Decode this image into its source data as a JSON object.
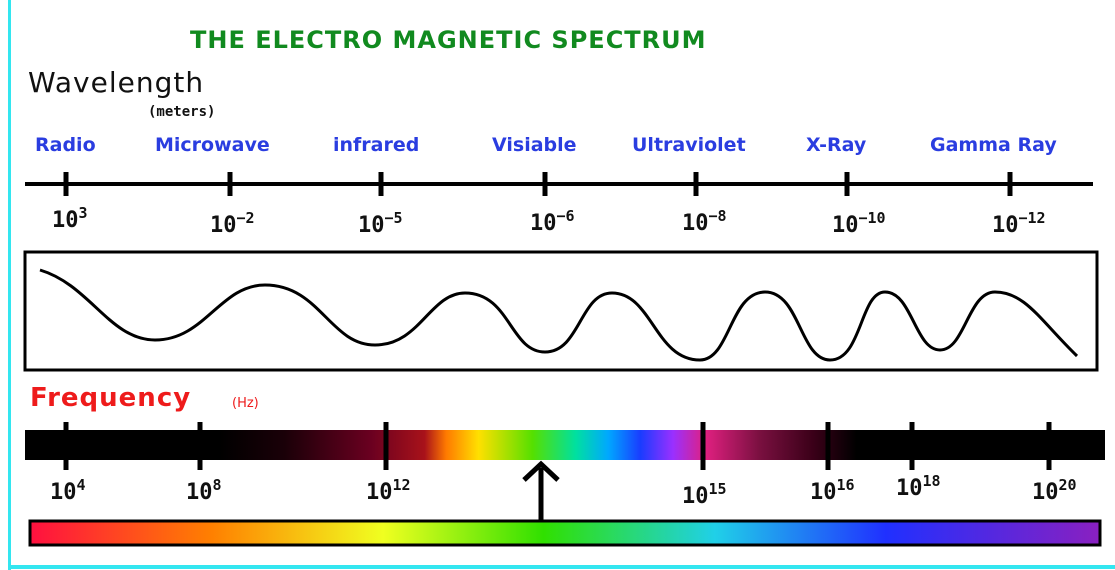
{
  "title": "THE ELECTRO MAGNETIC SPECTRUM",
  "wavelength": {
    "label": "Wavelength",
    "unit": "(meters)",
    "bands": [
      "Radio",
      "Microwave",
      "infrared",
      "Visiable",
      "Ultraviolet",
      "X-Ray",
      "Gamma Ray"
    ],
    "exponents": [
      {
        "base": "10",
        "exp": "3"
      },
      {
        "base": "10",
        "exp": "−2"
      },
      {
        "base": "10",
        "exp": "−5"
      },
      {
        "base": "10",
        "exp": "−6"
      },
      {
        "base": "10",
        "exp": "−8"
      },
      {
        "base": "10",
        "exp": "−10"
      },
      {
        "base": "10",
        "exp": "−12"
      }
    ]
  },
  "frequency": {
    "label": "Frequency",
    "unit": "(Hz)",
    "exponents": [
      {
        "base": "10",
        "exp": "4"
      },
      {
        "base": "10",
        "exp": "8"
      },
      {
        "base": "10",
        "exp": "12"
      },
      {
        "base": "10",
        "exp": "15"
      },
      {
        "base": "10",
        "exp": "16"
      },
      {
        "base": "10",
        "exp": "18"
      },
      {
        "base": "10",
        "exp": "20"
      }
    ]
  },
  "colors": {
    "title": "#118a1f",
    "band_text": "#2a3de0",
    "frequency_text": "#ee1b1b",
    "frame": "#33e6f0"
  }
}
